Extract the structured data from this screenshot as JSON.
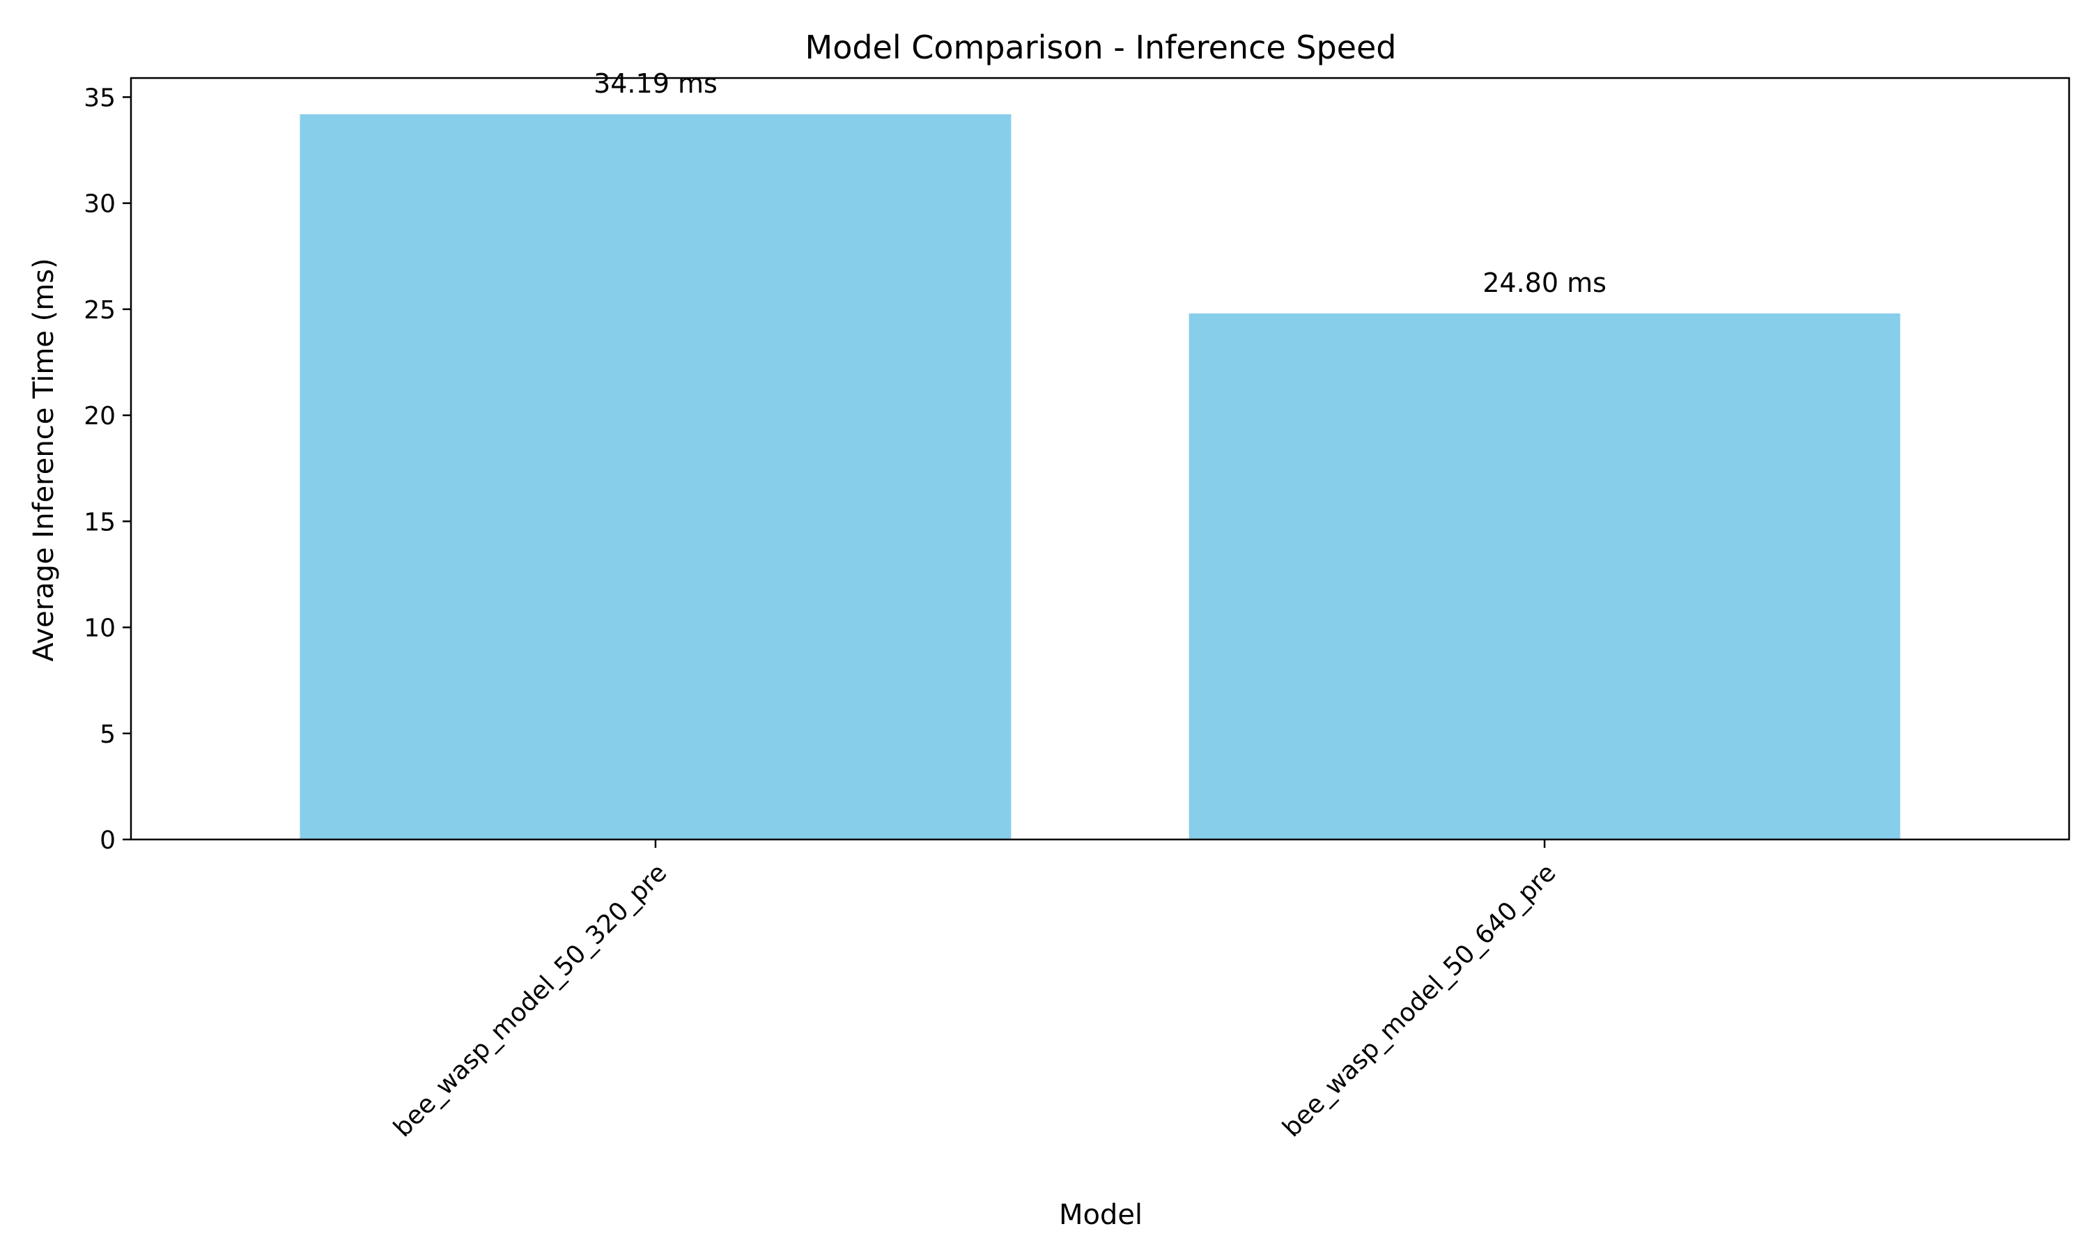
{
  "chart_data": {
    "type": "bar",
    "title": "Model Comparison - Inference Speed",
    "xlabel": "Model",
    "ylabel": "Average Inference Time (ms)",
    "categories": [
      "bee_wasp_model_50_320_pre",
      "bee_wasp_model_50_640_pre"
    ],
    "values": [
      34.19,
      24.8
    ],
    "value_labels": [
      "34.19 ms",
      "24.80 ms"
    ],
    "ylim": [
      0,
      35.9
    ],
    "yticks": [
      0,
      5,
      10,
      15,
      20,
      25,
      30,
      35
    ],
    "ytick_labels": [
      "0",
      "5",
      "10",
      "15",
      "20",
      "25",
      "30",
      "35"
    ],
    "grid": false,
    "bar_color": "#87CEEB"
  }
}
